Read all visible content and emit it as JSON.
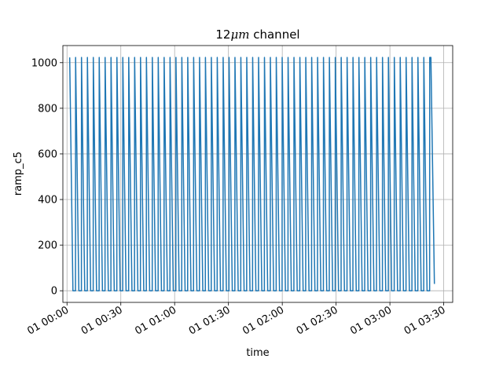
{
  "chart_data": {
    "type": "line",
    "title": "12μm channel",
    "title_parts": {
      "number": "12",
      "unit": "μm",
      "rest": " channel"
    },
    "xlabel": "time",
    "ylabel": "ramp_c5",
    "grid": true,
    "x_axis": {
      "kind": "time",
      "xlim_minutes": [
        -2.3,
        215.0
      ],
      "ticks": [
        {
          "minute": 0,
          "label": "01 00:00"
        },
        {
          "minute": 30,
          "label": "01 00:30"
        },
        {
          "minute": 60,
          "label": "01 01:00"
        },
        {
          "minute": 90,
          "label": "01 01:30"
        },
        {
          "minute": 120,
          "label": "01 02:00"
        },
        {
          "minute": 150,
          "label": "01 02:30"
        },
        {
          "minute": 180,
          "label": "01 03:00"
        },
        {
          "minute": 210,
          "label": "01 03:30"
        }
      ]
    },
    "y_axis": {
      "ylim": [
        -51,
        1075
      ],
      "ticks": [
        0,
        200,
        400,
        600,
        800,
        1000
      ]
    },
    "series": [
      {
        "color": "#1f77b4",
        "pattern": "sawtooth ramp from 0 to 1023, repeating about every 3.3 minutes",
        "ramp_min": 0,
        "ramp_max": 1023,
        "first_peak_minute": 1.5,
        "last_peak_minute": 202.5,
        "period_minutes": 3.29,
        "final_fall_minute": 204.8,
        "final_value": 30
      }
    ],
    "colors": {
      "line": "#1f77b4",
      "grid": "#b0b0b0",
      "axes": "#000000"
    }
  }
}
